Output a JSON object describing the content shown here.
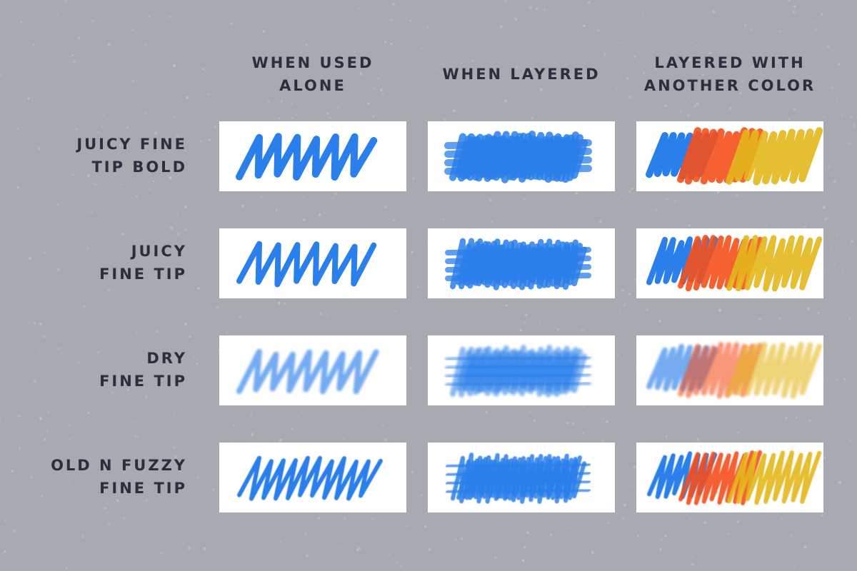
{
  "columns": [
    {
      "lines": [
        "WHEN USED",
        "ALONE"
      ]
    },
    {
      "lines": [
        "WHEN LAYERED"
      ]
    },
    {
      "lines": [
        "LAYERED WITH",
        "ANOTHER COLOR"
      ]
    }
  ],
  "rows": [
    {
      "lines": [
        "JUICY FINE",
        "TIP BOLD"
      ]
    },
    {
      "lines": [
        "JUICY",
        "FINE TIP"
      ]
    },
    {
      "lines": [
        "DRY",
        "FINE TIP"
      ]
    },
    {
      "lines": [
        "OLD N FUZZY",
        "FINE TIP"
      ]
    }
  ]
}
